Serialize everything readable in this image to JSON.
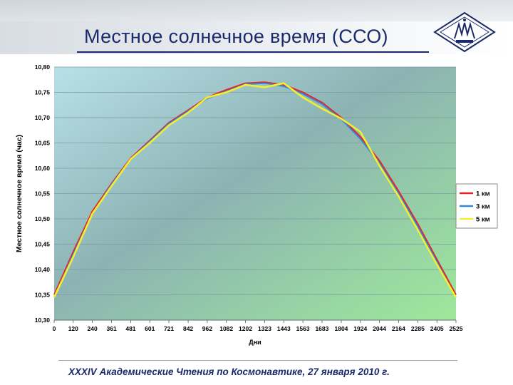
{
  "slide": {
    "title": "Местное солнечное время (ССО)",
    "footer": "XXXIV Академические Чтения по Космонавтике, 27 января 2010 г."
  },
  "logo": {
    "icon": "institution-emblem-icon"
  },
  "chart_data": {
    "type": "line",
    "title": "",
    "xlabel": "Дни",
    "ylabel": "Местное солнечное время (час)",
    "x": [
      0,
      120,
      240,
      361,
      481,
      601,
      721,
      842,
      962,
      1082,
      1202,
      1323,
      1443,
      1563,
      1683,
      1804,
      1924,
      2044,
      2164,
      2285,
      2405,
      2525
    ],
    "xticks": [
      "0",
      "120",
      "240",
      "361",
      "481",
      "601",
      "721",
      "842",
      "962",
      "1082",
      "1202",
      "1323",
      "1443",
      "1563",
      "1683",
      "1804",
      "1924",
      "2044",
      "2164",
      "2285",
      "2405",
      "2525"
    ],
    "xlim": [
      0,
      2525
    ],
    "ylim": [
      10.3,
      10.8
    ],
    "yticks": [
      "10,30",
      "10,35",
      "10,40",
      "10,45",
      "10,50",
      "10,55",
      "10,60",
      "10,65",
      "10,70",
      "10,75",
      "10,80"
    ],
    "grid": true,
    "legend_position": "right",
    "series": [
      {
        "name": "1 км",
        "color": "#e8202a",
        "values": [
          10.35,
          10.435,
          10.515,
          10.57,
          10.62,
          10.655,
          10.69,
          10.715,
          10.74,
          10.755,
          10.768,
          10.77,
          10.765,
          10.75,
          10.73,
          10.7,
          10.662,
          10.615,
          10.555,
          10.49,
          10.42,
          10.35
        ]
      },
      {
        "name": "3 км",
        "color": "#3a86d0",
        "values": [
          10.345,
          10.43,
          10.51,
          10.568,
          10.618,
          10.653,
          10.688,
          10.713,
          10.738,
          10.752,
          10.766,
          10.768,
          10.762,
          10.747,
          10.727,
          10.697,
          10.658,
          10.61,
          10.55,
          10.485,
          10.415,
          10.345
        ]
      },
      {
        "name": "5 км",
        "color": "#f0f030",
        "values": [
          10.345,
          10.425,
          10.51,
          10.565,
          10.618,
          10.65,
          10.685,
          10.71,
          10.74,
          10.75,
          10.765,
          10.76,
          10.768,
          10.74,
          10.718,
          10.698,
          10.672,
          10.605,
          10.545,
          10.478,
          10.41,
          10.345
        ]
      }
    ]
  }
}
